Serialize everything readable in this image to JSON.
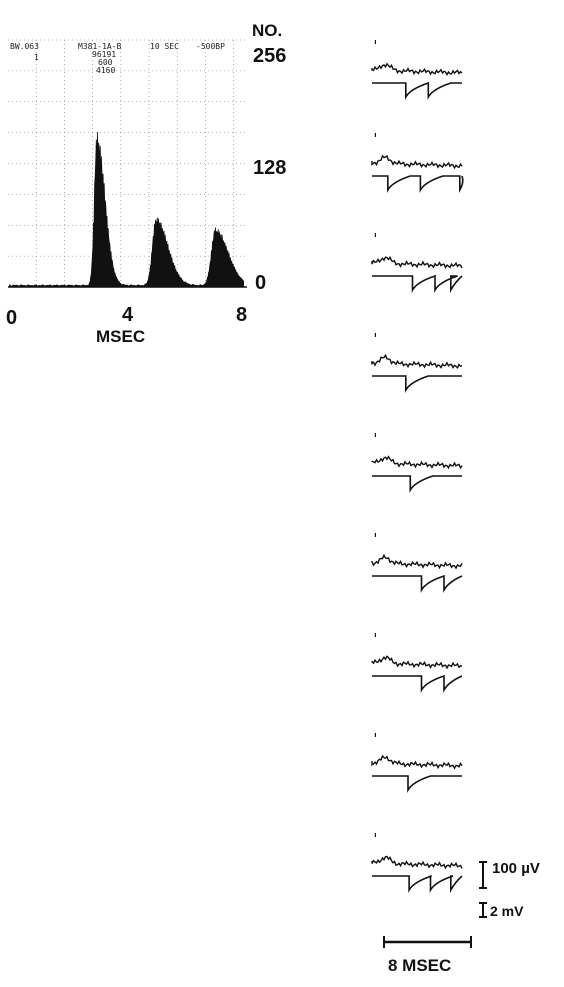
{
  "chart_data": {
    "type": "area",
    "histogram": {
      "x_unit_label": "MSEC",
      "y_unit_label": "NO.",
      "x_ticks": [
        "0",
        "4",
        "8"
      ],
      "x_range": [
        0,
        8.4
      ],
      "y_ticks": [
        "0",
        "128",
        "256"
      ],
      "y_range": [
        0,
        256
      ],
      "header": {
        "left": "BW.063",
        "left_sub": "1",
        "center": "M381-1A-B",
        "center_sub": [
          "96191",
          "600",
          "4160"
        ],
        "right1": "10 SEC",
        "right2": "-500BP"
      },
      "peaks": [
        {
          "center": 3.15,
          "height": 138,
          "width": 0.09
        },
        {
          "center": 5.25,
          "height": 62,
          "width": 0.13
        },
        {
          "center": 7.35,
          "height": 52,
          "width": 0.14
        }
      ],
      "baseline": 1.5
    },
    "traces": {
      "count": 9,
      "scale_labels": {
        "voltage_upper": "100 µV",
        "voltage_lower": "2 mV",
        "time": "8 MSEC"
      },
      "notch_positions_ms": [
        [
          3.0,
          5.0
        ],
        [
          1.4,
          4.3,
          7.8
        ],
        [
          3.6,
          5.6,
          7.0
        ],
        [
          3.0
        ],
        [
          3.4
        ],
        [
          4.4,
          6.4
        ],
        [
          4.4,
          6.4
        ],
        [
          3.2
        ],
        [
          3.3,
          5.2,
          7.0
        ]
      ]
    }
  }
}
